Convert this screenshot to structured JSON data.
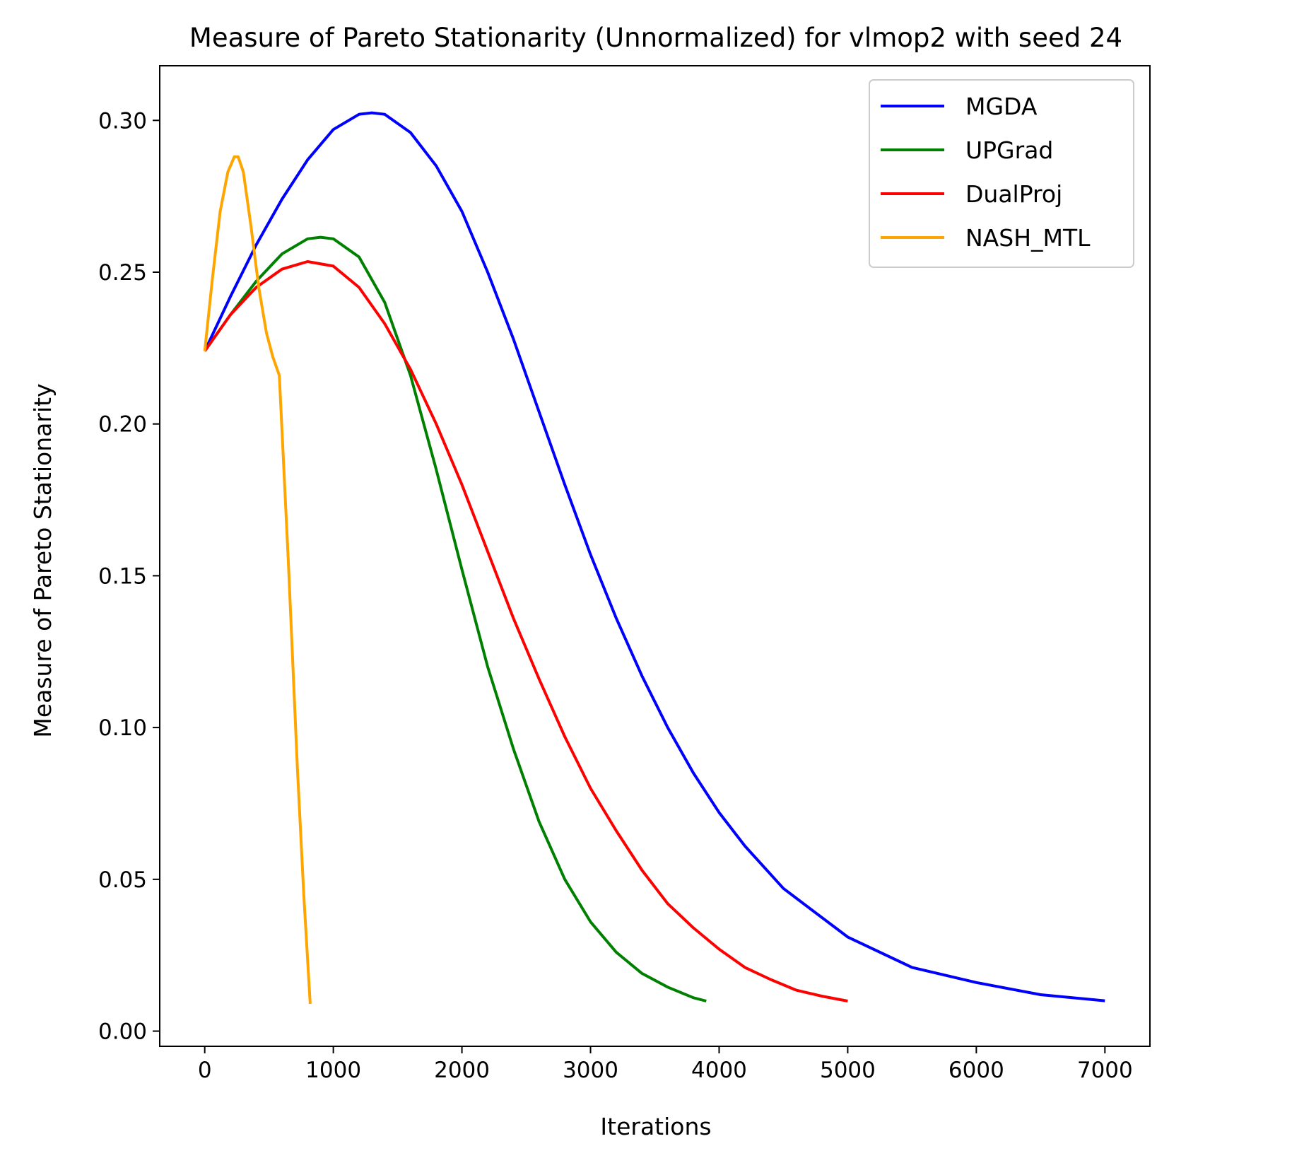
{
  "chart_data": {
    "type": "line",
    "title": "Measure of Pareto Stationarity (Unnormalized) for vlmop2 with seed 24",
    "xlabel": "Iterations",
    "ylabel": "Measure of Pareto Stationarity",
    "xlim": [
      -350,
      7350
    ],
    "ylim": [
      -0.005,
      0.318
    ],
    "xticks": [
      0,
      1000,
      2000,
      3000,
      4000,
      5000,
      6000,
      7000
    ],
    "xtick_labels": [
      "0",
      "1000",
      "2000",
      "3000",
      "4000",
      "5000",
      "6000",
      "7000"
    ],
    "yticks": [
      0.0,
      0.05,
      0.1,
      0.15,
      0.2,
      0.25,
      0.3
    ],
    "ytick_labels": [
      "0.00",
      "0.05",
      "0.10",
      "0.15",
      "0.20",
      "0.25",
      "0.30"
    ],
    "grid": false,
    "legend_position": "top-right",
    "series": [
      {
        "name": "MGDA",
        "color": "#0000ff",
        "x": [
          0,
          200,
          400,
          600,
          800,
          1000,
          1200,
          1300,
          1400,
          1600,
          1800,
          2000,
          2200,
          2400,
          2600,
          2800,
          3000,
          3200,
          3400,
          3600,
          3800,
          4000,
          4200,
          4500,
          5000,
          5500,
          6000,
          6500,
          7000
        ],
        "y": [
          0.224,
          0.242,
          0.259,
          0.274,
          0.287,
          0.297,
          0.302,
          0.3025,
          0.302,
          0.296,
          0.285,
          0.27,
          0.25,
          0.228,
          0.204,
          0.18,
          0.157,
          0.136,
          0.117,
          0.1,
          0.085,
          0.072,
          0.061,
          0.047,
          0.031,
          0.021,
          0.016,
          0.012,
          0.01
        ]
      },
      {
        "name": "UPGrad",
        "color": "#008000",
        "x": [
          0,
          200,
          400,
          600,
          800,
          900,
          1000,
          1200,
          1400,
          1600,
          1800,
          2000,
          2200,
          2400,
          2600,
          2800,
          3000,
          3200,
          3400,
          3600,
          3800,
          3900
        ],
        "y": [
          0.224,
          0.236,
          0.247,
          0.256,
          0.261,
          0.2615,
          0.261,
          0.255,
          0.24,
          0.216,
          0.185,
          0.152,
          0.12,
          0.093,
          0.069,
          0.05,
          0.036,
          0.026,
          0.019,
          0.0145,
          0.011,
          0.0099
        ]
      },
      {
        "name": "DualProj",
        "color": "#ff0000",
        "x": [
          0,
          200,
          400,
          600,
          800,
          1000,
          1200,
          1400,
          1600,
          1800,
          2000,
          2200,
          2400,
          2600,
          2800,
          3000,
          3200,
          3400,
          3600,
          3800,
          4000,
          4200,
          4400,
          4600,
          4800,
          5000
        ],
        "y": [
          0.224,
          0.236,
          0.245,
          0.251,
          0.2535,
          0.252,
          0.245,
          0.233,
          0.218,
          0.2,
          0.18,
          0.158,
          0.136,
          0.116,
          0.097,
          0.08,
          0.066,
          0.053,
          0.042,
          0.034,
          0.027,
          0.021,
          0.017,
          0.0135,
          0.0115,
          0.0099
        ]
      },
      {
        "name": "NASH_MTL",
        "color": "#ffa500",
        "x": [
          0,
          60,
          120,
          180,
          230,
          260,
          300,
          360,
          420,
          480,
          530,
          580,
          650,
          720,
          770,
          820
        ],
        "y": [
          0.224,
          0.248,
          0.27,
          0.283,
          0.288,
          0.288,
          0.283,
          0.265,
          0.245,
          0.23,
          0.222,
          0.216,
          0.155,
          0.087,
          0.045,
          0.009
        ]
      }
    ]
  }
}
